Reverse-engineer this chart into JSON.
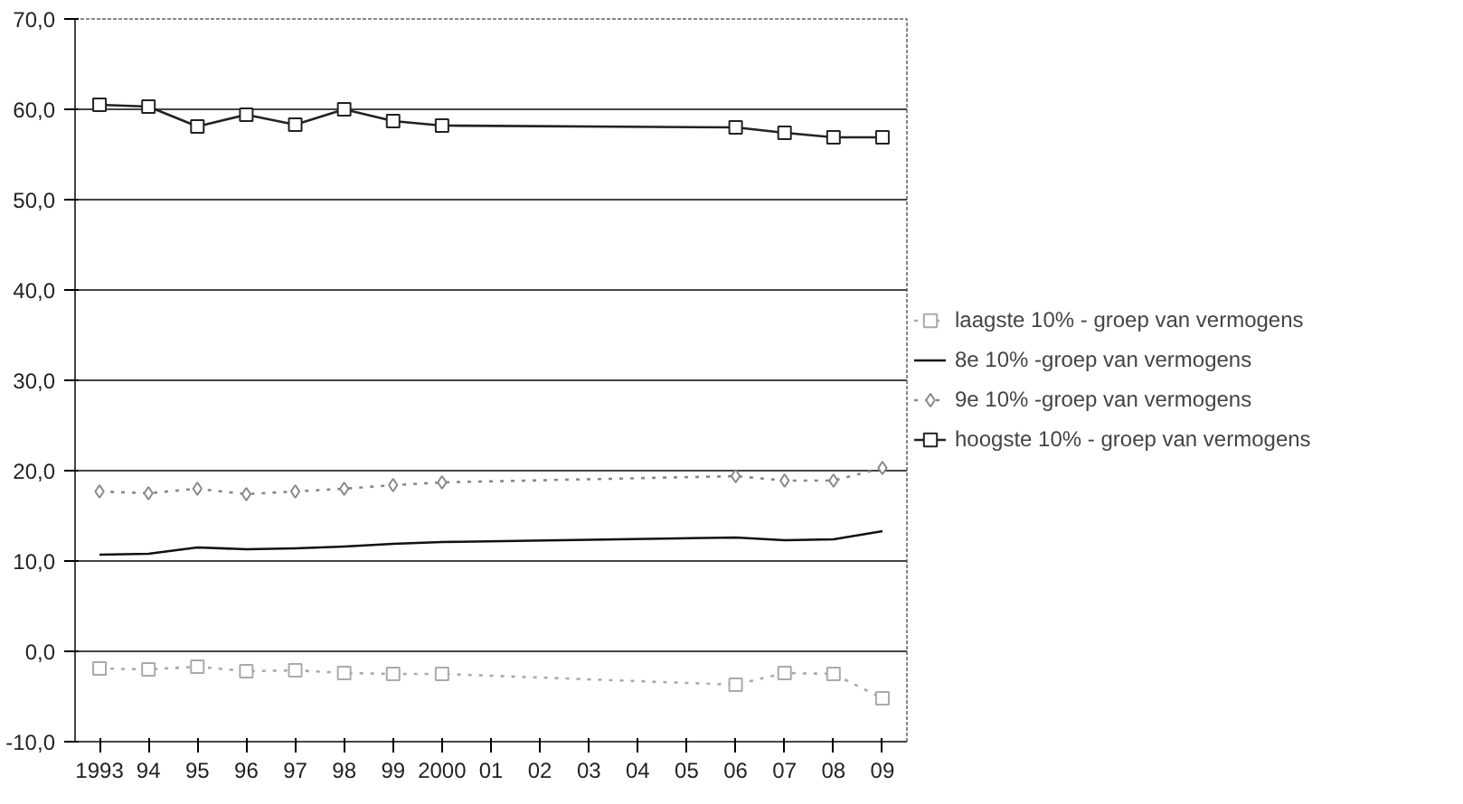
{
  "chart_data": {
    "type": "line",
    "x": [
      1993,
      1994,
      1995,
      1996,
      1997,
      1998,
      1999,
      2000,
      2006,
      2007,
      2008,
      2009
    ],
    "series": [
      {
        "name": "laagste 10% - groep van vermogens",
        "color": "#aaaaaa",
        "marker": "square",
        "line_style": "dotted",
        "values": [
          -1.9,
          -2.0,
          -1.7,
          -2.2,
          -2.1,
          -2.4,
          -2.5,
          -2.5,
          -3.7,
          -2.4,
          -2.5,
          -5.2
        ]
      },
      {
        "name": "8e 10% -groep van vermogens",
        "color": "#111111",
        "marker": "none",
        "line_style": "solid",
        "values": [
          10.7,
          10.8,
          11.5,
          11.3,
          11.4,
          11.6,
          11.9,
          12.1,
          12.6,
          12.3,
          12.4,
          13.3
        ]
      },
      {
        "name": "9e 10% -groep van vermogens",
        "color": "#888888",
        "marker": "diamond",
        "line_style": "dotted",
        "values": [
          17.7,
          17.5,
          18.0,
          17.4,
          17.7,
          18.0,
          18.4,
          18.7,
          19.4,
          18.9,
          18.9,
          20.3
        ]
      },
      {
        "name": "hoogste 10% - groep van vermogens",
        "color": "#222222",
        "marker": "square",
        "line_style": "solid",
        "values": [
          60.5,
          60.3,
          58.1,
          59.4,
          58.3,
          60.0,
          58.7,
          58.2,
          58.0,
          57.4,
          56.9,
          56.9
        ]
      }
    ],
    "xlim": [
      1992.5,
      2009.5
    ],
    "xticks": [
      {
        "value": 1993,
        "label": "1993"
      },
      {
        "value": 1994,
        "label": "94"
      },
      {
        "value": 1995,
        "label": "95"
      },
      {
        "value": 1996,
        "label": "96"
      },
      {
        "value": 1997,
        "label": "97"
      },
      {
        "value": 1998,
        "label": "98"
      },
      {
        "value": 1999,
        "label": "99"
      },
      {
        "value": 2000,
        "label": "2000"
      },
      {
        "value": 2001,
        "label": "01"
      },
      {
        "value": 2002,
        "label": "02"
      },
      {
        "value": 2003,
        "label": "03"
      },
      {
        "value": 2004,
        "label": "04"
      },
      {
        "value": 2005,
        "label": "05"
      },
      {
        "value": 2006,
        "label": "06"
      },
      {
        "value": 2007,
        "label": "07"
      },
      {
        "value": 2008,
        "label": "08"
      },
      {
        "value": 2009,
        "label": "09"
      }
    ],
    "ylim": [
      -10,
      70
    ],
    "yticks": [
      {
        "value": -10,
        "label": "-10,0"
      },
      {
        "value": 0,
        "label": "0,0"
      },
      {
        "value": 10,
        "label": "10,0"
      },
      {
        "value": 20,
        "label": "20,0"
      },
      {
        "value": 30,
        "label": "30,0"
      },
      {
        "value": 40,
        "label": "40,0"
      },
      {
        "value": 50,
        "label": "50,0"
      },
      {
        "value": 60,
        "label": "60,0"
      },
      {
        "value": 70,
        "label": "70,0"
      }
    ],
    "grid": "y",
    "legend": "right"
  }
}
